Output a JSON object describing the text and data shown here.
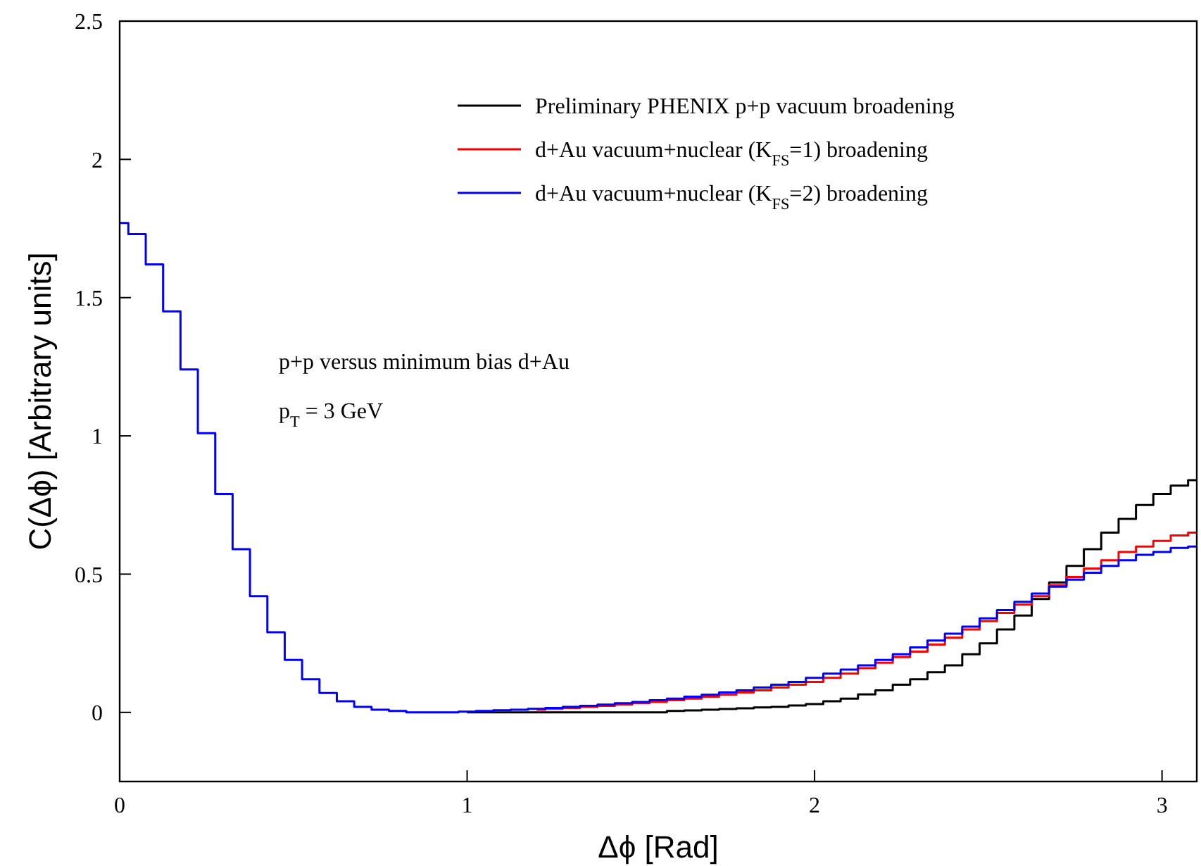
{
  "chart_data": {
    "type": "step",
    "xlabel": "Δϕ [Rad]",
    "ylabel": "C(Δϕ) [Arbitrary units]",
    "x": [
      0,
      0.05,
      0.1,
      0.15,
      0.2,
      0.25,
      0.3,
      0.35,
      0.4,
      0.45,
      0.5,
      0.55,
      0.6,
      0.65,
      0.7,
      0.75,
      0.8,
      0.85,
      0.9,
      0.95,
      1,
      1.05,
      1.1,
      1.15,
      1.2,
      1.25,
      1.3,
      1.35,
      1.4,
      1.45,
      1.5,
      1.55,
      1.6,
      1.65,
      1.7,
      1.75,
      1.8,
      1.85,
      1.9,
      1.95,
      2,
      2.05,
      2.1,
      2.15,
      2.2,
      2.25,
      2.3,
      2.35,
      2.4,
      2.45,
      2.5,
      2.55,
      2.6,
      2.65,
      2.7,
      2.75,
      2.8,
      2.85,
      2.9,
      2.95,
      3,
      3.05,
      3.1
    ],
    "series": [
      {
        "name": "Preliminary PHENIX p+p vacuum broadening",
        "color": "#000000",
        "values": [
          null,
          null,
          null,
          null,
          null,
          null,
          null,
          null,
          null,
          null,
          null,
          null,
          null,
          null,
          null,
          null,
          null,
          null,
          null,
          null,
          0,
          0,
          0,
          0,
          0,
          0,
          0,
          0,
          0,
          0,
          0,
          0,
          0.005,
          0.007,
          0.01,
          0.012,
          0.015,
          0.018,
          0.02,
          0.025,
          0.03,
          0.04,
          0.05,
          0.065,
          0.08,
          0.1,
          0.12,
          0.145,
          0.17,
          0.21,
          0.25,
          0.3,
          0.35,
          0.41,
          0.47,
          0.53,
          0.59,
          0.65,
          0.7,
          0.75,
          0.79,
          0.82,
          0.84
        ]
      },
      {
        "name": "d+Au vacuum+nuclear (K$_{FS}$=1) broadening",
        "color": "#ff0000",
        "values": [
          null,
          null,
          null,
          null,
          null,
          null,
          null,
          null,
          null,
          null,
          null,
          null,
          null,
          null,
          null,
          null,
          null,
          null,
          null,
          null,
          null,
          null,
          null,
          null,
          0.01,
          0.013,
          0.016,
          0.02,
          0.024,
          0.028,
          0.033,
          0.038,
          0.044,
          0.05,
          0.057,
          0.064,
          0.072,
          0.08,
          0.09,
          0.1,
          0.11,
          0.125,
          0.14,
          0.16,
          0.18,
          0.2,
          0.22,
          0.245,
          0.27,
          0.3,
          0.33,
          0.36,
          0.39,
          0.42,
          0.46,
          0.49,
          0.52,
          0.55,
          0.58,
          0.6,
          0.62,
          0.64,
          0.65
        ]
      },
      {
        "name": "d+Au vacuum+nuclear (K$_{FS}$=2) broadening",
        "color": "#0000ff",
        "values": [
          1.77,
          1.73,
          1.62,
          1.45,
          1.24,
          1.01,
          0.79,
          0.59,
          0.42,
          0.29,
          0.19,
          0.12,
          0.07,
          0.04,
          0.02,
          0.01,
          0.005,
          0,
          0,
          0,
          0.003,
          0.005,
          0.008,
          0.01,
          0.013,
          0.016,
          0.02,
          0.024,
          0.028,
          0.033,
          0.038,
          0.044,
          0.05,
          0.057,
          0.064,
          0.072,
          0.08,
          0.09,
          0.1,
          0.11,
          0.125,
          0.14,
          0.155,
          0.17,
          0.19,
          0.21,
          0.235,
          0.26,
          0.285,
          0.31,
          0.34,
          0.37,
          0.4,
          0.43,
          0.455,
          0.48,
          0.505,
          0.53,
          0.55,
          0.57,
          0.58,
          0.595,
          0.6
        ]
      }
    ],
    "xlim": [
      0,
      3.1
    ],
    "xticks": [
      0,
      1,
      2,
      3
    ],
    "ylim": [
      -0.25,
      2.5
    ],
    "yticks": [
      0,
      0.5,
      1,
      1.5,
      2,
      2.5
    ],
    "legend": "top right",
    "grid": false,
    "annotations": [
      "p+p versus minimum bias d+Au",
      "p$_{T}$ = 3 GeV"
    ]
  }
}
